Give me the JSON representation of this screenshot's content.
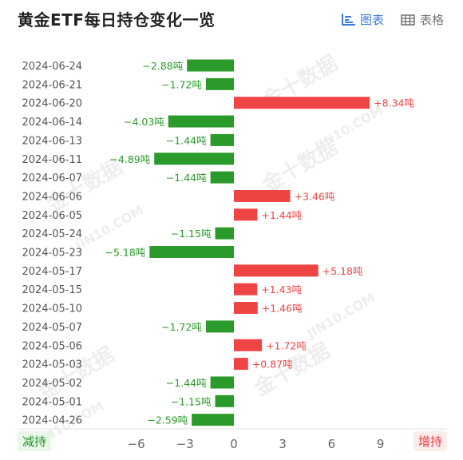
{
  "title": "黄金ETF每日持仓变化一览",
  "tabs": {
    "chart": "图表",
    "table": "表格"
  },
  "legend": {
    "decrease": "减持",
    "increase": "增持"
  },
  "colors": {
    "positive": "#ef4444",
    "negative": "#2a9a2a",
    "active_tab": "#3e7bd9",
    "axis_text": "#666666"
  },
  "chart_data": {
    "type": "bar",
    "orientation": "horizontal",
    "categories": [
      "2024-06-24",
      "2024-06-21",
      "2024-06-20",
      "2024-06-14",
      "2024-06-13",
      "2024-06-11",
      "2024-06-07",
      "2024-06-06",
      "2024-06-05",
      "2024-05-24",
      "2024-05-23",
      "2024-05-17",
      "2024-05-15",
      "2024-05-10",
      "2024-05-07",
      "2024-05-06",
      "2024-05-03",
      "2024-05-02",
      "2024-05-01",
      "2024-04-26"
    ],
    "values": [
      -2.88,
      -1.72,
      8.34,
      -4.03,
      -1.44,
      -4.89,
      -1.44,
      3.46,
      1.44,
      -1.15,
      -5.18,
      5.18,
      1.43,
      1.46,
      -1.72,
      1.72,
      0.87,
      -1.44,
      -1.15,
      -2.59
    ],
    "labels": [
      "−2.88吨",
      "−1.72吨",
      "+8.34吨",
      "−4.03吨",
      "−1.44吨",
      "−4.89吨",
      "−1.44吨",
      "+3.46吨",
      "+1.44吨",
      "−1.15吨",
      "−5.18吨",
      "+5.18吨",
      "+1.43吨",
      "+1.46吨",
      "−1.72吨",
      "+1.72吨",
      "+0.87吨",
      "−1.44吨",
      "−1.15吨",
      "−2.59吨"
    ],
    "xticks": [
      "−6",
      "−3",
      "0",
      "3",
      "6",
      "9"
    ],
    "xtick_values": [
      -6,
      -3,
      0,
      3,
      6,
      9
    ],
    "xlim": [
      -7.5,
      9.5
    ]
  }
}
